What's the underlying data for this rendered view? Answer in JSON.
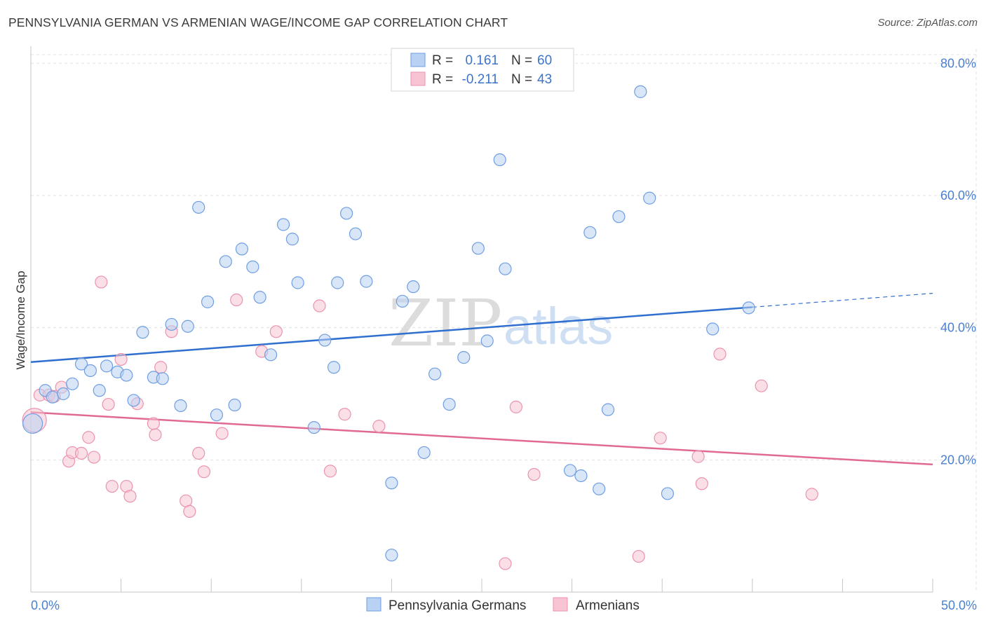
{
  "header": {
    "title": "PENNSYLVANIA GERMAN VS ARMENIAN WAGE/INCOME GAP CORRELATION CHART",
    "source": "Source: ZipAtlas.com"
  },
  "watermark": {
    "zip": "ZIP",
    "atlas": "atlas"
  },
  "legend": {
    "rows": [
      {
        "r_label": "R =",
        "r_value": "0.161",
        "n_label": "N =",
        "n_value": "60"
      },
      {
        "r_label": "R =",
        "r_value": "-0.211",
        "n_label": "N =",
        "n_value": "43"
      }
    ]
  },
  "bottom_legend": [
    "Pennsylvania Germans",
    "Armenians"
  ],
  "chart_data": {
    "type": "scatter",
    "title": "PENNSYLVANIA GERMAN VS ARMENIAN WAGE/INCOME GAP CORRELATION CHART",
    "xlabel": "",
    "ylabel": "Wage/Income Gap",
    "xlim": [
      0,
      50
    ],
    "ylim": [
      0,
      83
    ],
    "x_tick_labels": [
      {
        "value": 0,
        "label": "0.0%"
      },
      {
        "value": 50,
        "label": "50.0%"
      }
    ],
    "y_tick_labels": [
      {
        "value": 20,
        "label": "20.0%"
      },
      {
        "value": 40,
        "label": "40.0%"
      },
      {
        "value": 60,
        "label": "60.0%"
      },
      {
        "value": 80,
        "label": "80.0%"
      }
    ],
    "grid": true,
    "legend_position": "top-center",
    "colors": {
      "pg_fill": "#b9d1f3",
      "pg_stroke": "#6f9ee3",
      "pg_line": "#2f6fcf",
      "arm_fill": "#f8c4d3",
      "arm_stroke": "#eb93ad",
      "arm_line": "#e06a93"
    },
    "series": [
      {
        "name": "Pennsylvania Germans",
        "r": 0.161,
        "n": 60,
        "trend": {
          "x0": 0,
          "y0": 34.8,
          "x1": 40,
          "y1": 43.1,
          "dash_to_x": 50,
          "dash_to_y": 45.2
        },
        "points": [
          [
            0.1,
            25.5
          ],
          [
            0.8,
            30.5
          ],
          [
            1.2,
            29.5
          ],
          [
            1.8,
            30.0
          ],
          [
            2.3,
            31.5
          ],
          [
            2.8,
            34.5
          ],
          [
            3.3,
            33.5
          ],
          [
            3.8,
            30.5
          ],
          [
            4.2,
            34.2
          ],
          [
            4.8,
            33.3
          ],
          [
            5.3,
            32.8
          ],
          [
            5.7,
            29.0
          ],
          [
            6.2,
            39.3
          ],
          [
            6.8,
            32.5
          ],
          [
            7.3,
            32.3
          ],
          [
            7.8,
            40.5
          ],
          [
            8.3,
            28.2
          ],
          [
            8.7,
            40.2
          ],
          [
            9.3,
            58.2
          ],
          [
            9.8,
            43.9
          ],
          [
            10.3,
            26.8
          ],
          [
            10.8,
            50.0
          ],
          [
            11.3,
            28.3
          ],
          [
            11.7,
            51.9
          ],
          [
            12.3,
            49.2
          ],
          [
            12.7,
            44.6
          ],
          [
            13.3,
            35.9
          ],
          [
            14.0,
            55.6
          ],
          [
            14.5,
            53.4
          ],
          [
            14.8,
            46.8
          ],
          [
            15.7,
            24.9
          ],
          [
            16.3,
            38.1
          ],
          [
            16.8,
            34.0
          ],
          [
            17.0,
            46.8
          ],
          [
            17.5,
            57.3
          ],
          [
            18.0,
            54.2
          ],
          [
            18.6,
            47.0
          ],
          [
            20.0,
            16.5
          ],
          [
            20.0,
            5.6
          ],
          [
            20.6,
            44.0
          ],
          [
            21.2,
            46.2
          ],
          [
            21.8,
            21.1
          ],
          [
            22.4,
            33.0
          ],
          [
            23.2,
            28.4
          ],
          [
            24.0,
            35.5
          ],
          [
            24.8,
            52.0
          ],
          [
            25.3,
            38.0
          ],
          [
            26.0,
            65.4
          ],
          [
            26.3,
            48.9
          ],
          [
            29.9,
            18.4
          ],
          [
            30.5,
            17.6
          ],
          [
            31.0,
            54.4
          ],
          [
            31.5,
            15.6
          ],
          [
            32.0,
            27.6
          ],
          [
            32.6,
            56.8
          ],
          [
            33.8,
            75.7
          ],
          [
            34.3,
            59.6
          ],
          [
            35.3,
            14.9
          ],
          [
            37.8,
            39.8
          ],
          [
            39.8,
            43.0
          ]
        ]
      },
      {
        "name": "Armenians",
        "r": -0.211,
        "n": 43,
        "trend": {
          "x0": 0,
          "y0": 27.2,
          "x1": 50,
          "y1": 19.3
        },
        "points": [
          [
            0.5,
            29.8
          ],
          [
            1.0,
            29.8
          ],
          [
            1.3,
            29.6
          ],
          [
            1.7,
            31.0
          ],
          [
            2.1,
            19.8
          ],
          [
            2.3,
            21.1
          ],
          [
            2.8,
            21.0
          ],
          [
            3.2,
            23.4
          ],
          [
            3.5,
            20.4
          ],
          [
            3.9,
            46.9
          ],
          [
            4.3,
            28.4
          ],
          [
            4.5,
            16.0
          ],
          [
            5.0,
            35.2
          ],
          [
            5.3,
            16.0
          ],
          [
            5.5,
            14.5
          ],
          [
            5.9,
            28.5
          ],
          [
            6.8,
            25.5
          ],
          [
            6.9,
            23.8
          ],
          [
            7.2,
            34.0
          ],
          [
            7.8,
            39.4
          ],
          [
            8.6,
            13.8
          ],
          [
            8.8,
            12.2
          ],
          [
            9.3,
            21.0
          ],
          [
            9.6,
            18.2
          ],
          [
            10.6,
            24.0
          ],
          [
            11.4,
            44.2
          ],
          [
            12.8,
            36.4
          ],
          [
            13.6,
            39.4
          ],
          [
            16.0,
            43.3
          ],
          [
            16.6,
            18.3
          ],
          [
            17.4,
            26.9
          ],
          [
            19.3,
            25.1
          ],
          [
            26.3,
            4.3
          ],
          [
            26.9,
            28.0
          ],
          [
            27.9,
            17.8
          ],
          [
            33.7,
            5.4
          ],
          [
            34.9,
            23.3
          ],
          [
            37.0,
            20.5
          ],
          [
            37.2,
            16.4
          ],
          [
            38.2,
            36.0
          ],
          [
            40.5,
            31.2
          ],
          [
            43.3,
            14.8
          ],
          [
            0.2,
            26.0
          ]
        ]
      }
    ]
  }
}
